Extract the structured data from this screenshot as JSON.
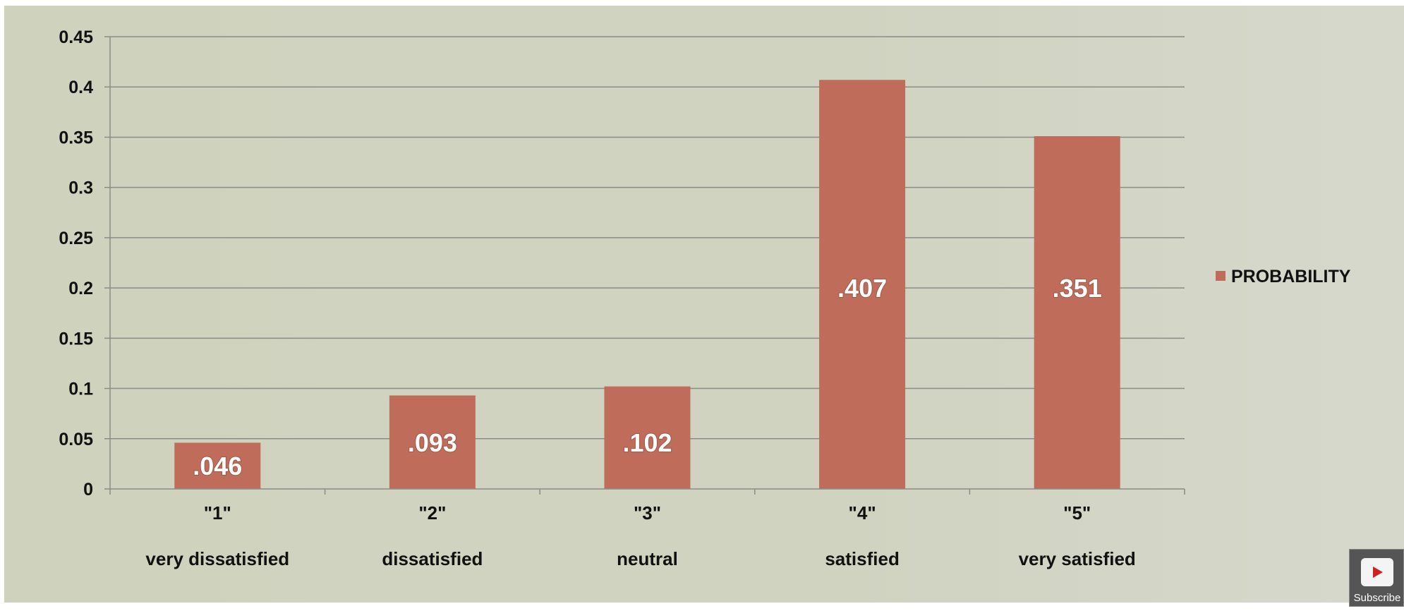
{
  "chart_data": {
    "type": "bar",
    "categories": [
      "\"1\"",
      "\"2\"",
      "\"3\"",
      "\"4\"",
      "\"5\""
    ],
    "category_descriptions": [
      "very dissatisfied",
      "dissatisfied",
      "neutral",
      "satisfied",
      "very satisfied"
    ],
    "series": [
      {
        "name": "PROBABILITY",
        "values": [
          0.046,
          0.093,
          0.102,
          0.407,
          0.351
        ],
        "data_labels": [
          ".046",
          ".093",
          ".102",
          ".407",
          ".351"
        ]
      }
    ],
    "yticks": [
      "0",
      "0.05",
      "0.1",
      "0.15",
      "0.2",
      "0.25",
      "0.3",
      "0.35",
      "0.4",
      "0.45"
    ],
    "ylim": [
      0,
      0.45
    ],
    "grid": true,
    "legend_position": "right",
    "colors": {
      "bar": "#bf6c5a",
      "grid": "#8a8c86",
      "axis": "#8a8c86"
    }
  },
  "overlay": {
    "subscribe_label": "Subscribe",
    "icon": "youtube-play-icon"
  }
}
